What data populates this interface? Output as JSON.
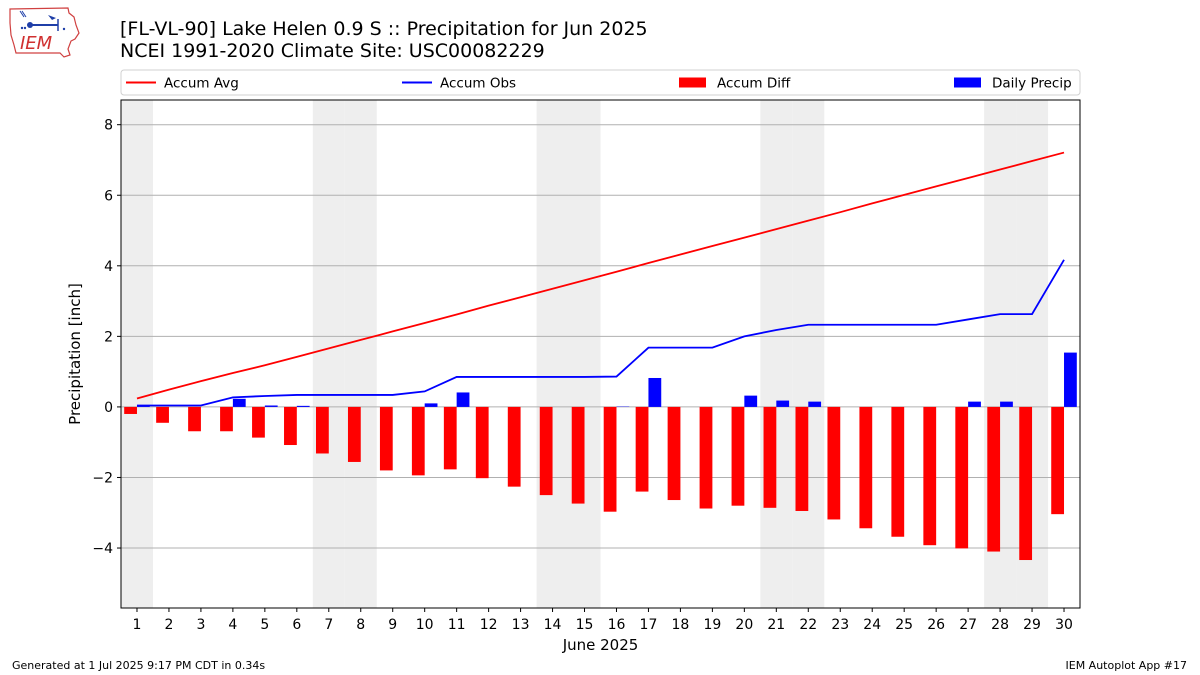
{
  "header": {
    "title_line1": "[FL-VL-90] Lake Helen 0.9 S :: Precipitation for Jun 2025",
    "title_line2": "NCEI 1991-2020 Climate Site: USC00082229",
    "logo_text": "IEM"
  },
  "footer": {
    "left": "Generated at 1 Jul 2025 9:17 PM CDT in 0.34s",
    "right": "IEM Autoplot App #17"
  },
  "colors": {
    "avg": "#ff0000",
    "obs": "#0000ff",
    "diff": "#ff0000",
    "daily": "#0000ff",
    "weekend_band": "#eeeeee",
    "grid": "#b0b0b0"
  },
  "chart_data": {
    "type": "bar",
    "title": "[FL-VL-90] Lake Helen 0.9 S :: Precipitation for Jun 2025",
    "xlabel": "June 2025",
    "ylabel": "Precipitation [inch]",
    "ylim": [
      -5.7,
      8.7
    ],
    "yticks": [
      -4,
      -2,
      0,
      2,
      4,
      6,
      8
    ],
    "ytick_labels": [
      "−4",
      "−2",
      "0",
      "2",
      "4",
      "6",
      "8"
    ],
    "grid": "y",
    "legend_placement": "top",
    "categories": [
      "1",
      "2",
      "3",
      "4",
      "5",
      "6",
      "7",
      "8",
      "9",
      "10",
      "11",
      "12",
      "13",
      "14",
      "15",
      "16",
      "17",
      "18",
      "19",
      "20",
      "21",
      "22",
      "23",
      "24",
      "25",
      "26",
      "27",
      "28",
      "29",
      "30"
    ],
    "weekend_days": [
      1,
      7,
      8,
      14,
      15,
      21,
      22,
      28,
      29
    ],
    "series": [
      {
        "name": "Accum Avg",
        "kind": "line",
        "values": [
          0.24,
          0.49,
          0.73,
          0.96,
          1.18,
          1.42,
          1.66,
          1.9,
          2.14,
          2.38,
          2.62,
          2.87,
          3.11,
          3.35,
          3.59,
          3.83,
          4.08,
          4.32,
          4.56,
          4.8,
          5.04,
          5.28,
          5.52,
          5.77,
          6.01,
          6.25,
          6.49,
          6.73,
          6.97,
          7.21
        ]
      },
      {
        "name": "Accum Obs",
        "kind": "line",
        "values": [
          0.04,
          0.04,
          0.04,
          0.27,
          0.31,
          0.34,
          0.34,
          0.34,
          0.34,
          0.44,
          0.85,
          0.85,
          0.85,
          0.85,
          0.85,
          0.86,
          1.68,
          1.68,
          1.68,
          2.0,
          2.18,
          2.33,
          2.33,
          2.33,
          2.33,
          2.33,
          2.48,
          2.63,
          2.63,
          4.17
        ]
      },
      {
        "name": "Accum Diff",
        "kind": "bar",
        "values": [
          -0.2,
          -0.45,
          -0.69,
          -0.69,
          -0.87,
          -1.08,
          -1.32,
          -1.56,
          -1.8,
          -1.94,
          -1.77,
          -2.02,
          -2.26,
          -2.5,
          -2.74,
          -2.97,
          -2.4,
          -2.64,
          -2.88,
          -2.8,
          -2.86,
          -2.95,
          -3.19,
          -3.44,
          -3.68,
          -3.92,
          -4.01,
          -4.1,
          -4.34,
          -3.04
        ]
      },
      {
        "name": "Daily Precip",
        "kind": "bar",
        "values": [
          0.04,
          0.0,
          0.0,
          0.23,
          0.04,
          0.03,
          0.0,
          0.0,
          0.0,
          0.1,
          0.41,
          0.0,
          0.0,
          0.0,
          0.0,
          0.01,
          0.82,
          0.0,
          0.0,
          0.32,
          0.18,
          0.15,
          0.0,
          0.0,
          0.0,
          0.0,
          0.15,
          0.15,
          0.0,
          1.54
        ]
      }
    ]
  }
}
